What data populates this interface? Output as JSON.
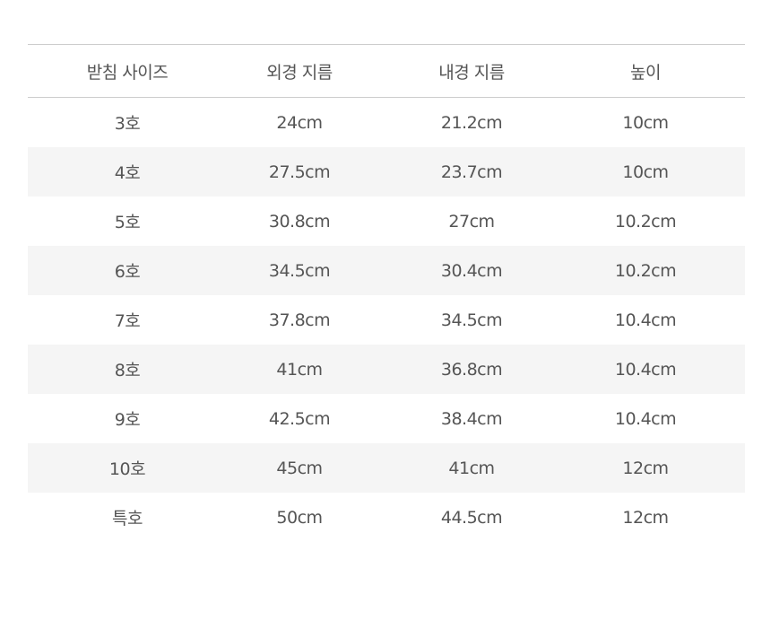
{
  "headers": [
    "받침 사이즈",
    "외경 지름",
    "내경 지름",
    "높이"
  ],
  "rows": [
    [
      "3호",
      "24cm",
      "21.2cm",
      "10cm"
    ],
    [
      "4호",
      "27.5cm",
      "23.7cm",
      "10cm"
    ],
    [
      "5호",
      "30.8cm",
      "27cm",
      "10.2cm"
    ],
    [
      "6호",
      "34.5cm",
      "30.4cm",
      "10.2cm"
    ],
    [
      "7호",
      "37.8cm",
      "34.5cm",
      "10.4cm"
    ],
    [
      "8호",
      "41cm",
      "36.8cm",
      "10.4cm"
    ],
    [
      "9호",
      "42.5cm",
      "38.4cm",
      "10.4cm"
    ],
    [
      "10호",
      "45cm",
      "41cm",
      "12cm"
    ],
    [
      "특호",
      "50cm",
      "44.5cm",
      "12cm"
    ]
  ]
}
